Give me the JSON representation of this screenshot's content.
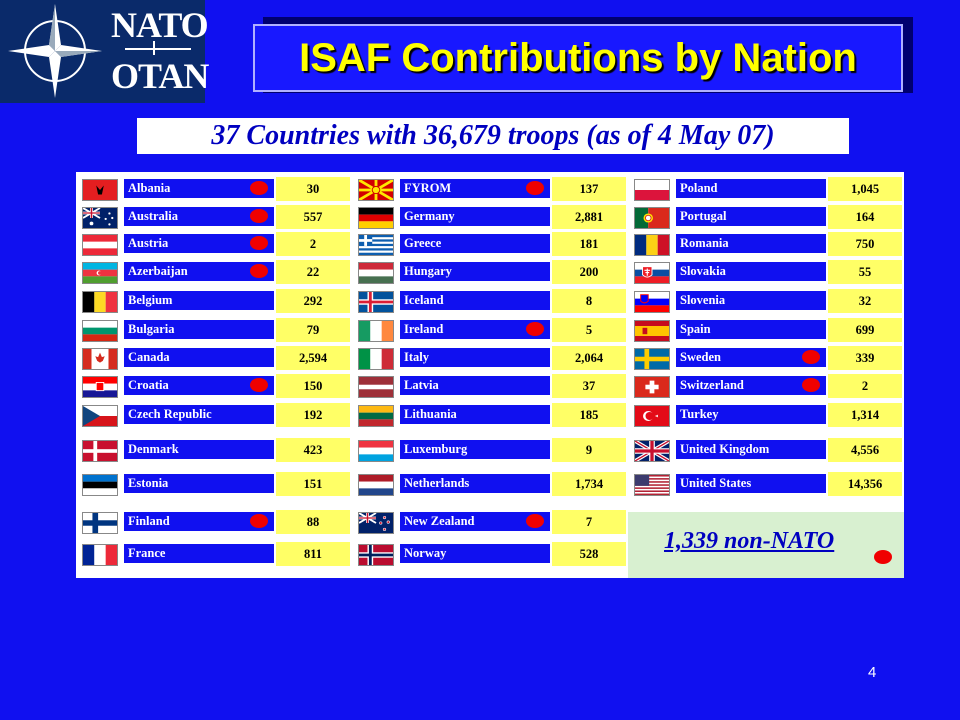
{
  "logo": {
    "top": "NATO",
    "bottom": "OTAN"
  },
  "title": "ISAF Contributions by Nation",
  "subtitle": "37 Countries with 36,679 troops (as of 4 May 07)",
  "columns": [
    [
      {
        "name": "Albania",
        "value": "30",
        "dot": true
      },
      {
        "name": "Australia",
        "value": "557",
        "dot": true
      },
      {
        "name": "Austria",
        "value": "2",
        "dot": true
      },
      {
        "name": "Azerbaijan",
        "value": "22",
        "dot": true
      },
      {
        "name": "Belgium",
        "value": "292",
        "dot": false
      },
      {
        "name": "Bulgaria",
        "value": "79",
        "dot": false
      },
      {
        "name": "Canada",
        "value": "2,594",
        "dot": false
      },
      {
        "name": "Croatia",
        "value": "150",
        "dot": true
      },
      {
        "name": "Czech Republic",
        "value": "192",
        "dot": false
      },
      {
        "name": "Denmark",
        "value": "423",
        "dot": false
      },
      {
        "name": "Estonia",
        "value": "151",
        "dot": false
      },
      {
        "name": "Finland",
        "value": "88",
        "dot": true
      },
      {
        "name": "France",
        "value": "811",
        "dot": false
      }
    ],
    [
      {
        "name": "FYROM",
        "value": "137",
        "dot": true
      },
      {
        "name": "Germany",
        "value": "2,881",
        "dot": false
      },
      {
        "name": "Greece",
        "value": "181",
        "dot": false
      },
      {
        "name": "Hungary",
        "value": "200",
        "dot": false
      },
      {
        "name": "Iceland",
        "value": "8",
        "dot": false
      },
      {
        "name": "Ireland",
        "value": "5",
        "dot": true
      },
      {
        "name": "Italy",
        "value": "2,064",
        "dot": false
      },
      {
        "name": "Latvia",
        "value": "37",
        "dot": false
      },
      {
        "name": "Lithuania",
        "value": "185",
        "dot": false
      },
      {
        "name": "Luxemburg",
        "value": "9",
        "dot": false
      },
      {
        "name": "Netherlands",
        "value": "1,734",
        "dot": false
      },
      {
        "name": "New Zealand",
        "value": "7",
        "dot": true
      },
      {
        "name": "Norway",
        "value": "528",
        "dot": false
      }
    ],
    [
      {
        "name": "Poland",
        "value": "1,045",
        "dot": false
      },
      {
        "name": "Portugal",
        "value": "164",
        "dot": false
      },
      {
        "name": "Romania",
        "value": "750",
        "dot": false
      },
      {
        "name": "Slovakia",
        "value": "55",
        "dot": false
      },
      {
        "name": "Slovenia",
        "value": "32",
        "dot": false
      },
      {
        "name": "Spain",
        "value": "699",
        "dot": false
      },
      {
        "name": "Sweden",
        "value": "339",
        "dot": true
      },
      {
        "name": "Switzerland",
        "value": "2",
        "dot": true
      },
      {
        "name": "Turkey",
        "value": "1,314",
        "dot": false
      },
      {
        "name": "United Kingdom",
        "value": "4,556",
        "dot": false
      },
      {
        "name": "United States",
        "value": "14,356",
        "dot": false
      }
    ]
  ],
  "non_nato": "1,339  non-NATO",
  "page_number": "4"
}
